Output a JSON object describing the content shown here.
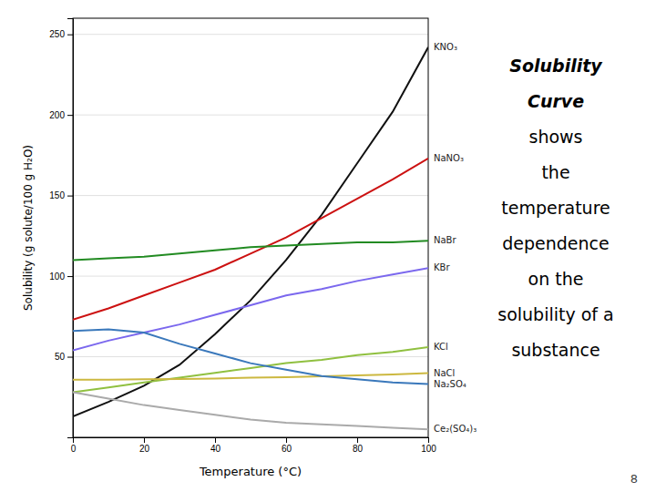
{
  "chart_data": {
    "type": "line",
    "title": "Solubility Curve",
    "subtitle": [
      "shows",
      "the",
      "temperature",
      "dependence",
      "on the",
      "solubility of a",
      "substance"
    ],
    "annotations": [
      "8"
    ],
    "x_label": "Temperature (°C)",
    "y_label": "Solubility (g solute/100 g H₂O)",
    "x": [
      0,
      10,
      20,
      30,
      40,
      50,
      60,
      70,
      80,
      90,
      100
    ],
    "series": [
      {
        "name": "KNO₃",
        "color": "#111111",
        "values": [
          13,
          22,
          32,
          45,
          64,
          85,
          110,
          138,
          170,
          202,
          242
        ]
      },
      {
        "name": "NaNO₃",
        "color": "#cc1111",
        "values": [
          73,
          80,
          88,
          96,
          104,
          114,
          124,
          136,
          148,
          160,
          173
        ]
      },
      {
        "name": "NaBr",
        "color": "#228B22",
        "values": [
          110,
          111,
          112,
          114,
          116,
          118,
          119,
          120,
          121,
          121,
          122
        ]
      },
      {
        "name": "KBr",
        "color": "#7b68ee",
        "values": [
          54,
          60,
          65,
          70,
          76,
          82,
          88,
          92,
          97,
          101,
          105
        ]
      },
      {
        "name": "KCl",
        "color": "#90c040",
        "values": [
          28,
          31,
          34,
          37,
          40,
          43,
          46,
          48,
          51,
          53,
          56
        ]
      },
      {
        "name": "NaCl",
        "color": "#ccb840",
        "values": [
          35.7,
          35.8,
          36.0,
          36.2,
          36.5,
          37.0,
          37.3,
          37.8,
          38.4,
          39.0,
          39.8
        ]
      },
      {
        "name": "Na₂SO₄",
        "color": "#3a78bb",
        "values": [
          66,
          67,
          65,
          58,
          52,
          46,
          42,
          38,
          36,
          34,
          33
        ]
      },
      {
        "name": "Ce₂(SO₄)₃",
        "color": "#aaaaaa",
        "values": [
          28,
          24,
          20,
          17,
          14,
          11,
          9,
          8,
          7,
          6,
          5
        ]
      }
    ],
    "xlim": [
      0,
      100
    ],
    "ylim": [
      0,
      260
    ],
    "xticks": [
      0,
      20,
      40,
      60,
      80,
      100
    ],
    "yticks": [
      50,
      100,
      150,
      200,
      250
    ],
    "grid": true
  }
}
